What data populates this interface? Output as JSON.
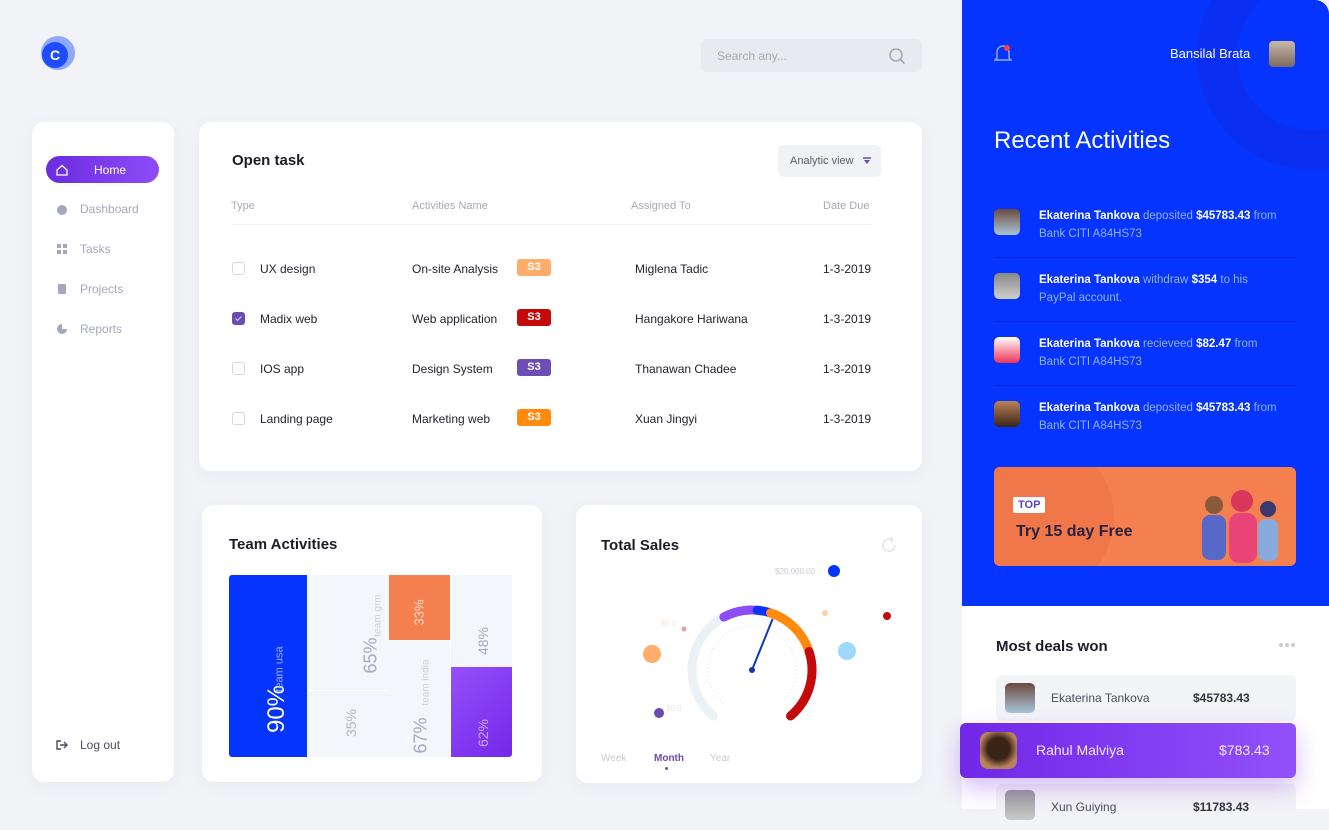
{
  "header": {
    "search_placeholder": "Search any...",
    "user_name": "Bansilal Brata",
    "logo_letter": "C"
  },
  "sidebar": {
    "items": [
      {
        "label": "Home",
        "icon": "home-icon",
        "active": true
      },
      {
        "label": "Dashboard",
        "icon": "dashboard-icon"
      },
      {
        "label": "Tasks",
        "icon": "tasks-icon"
      },
      {
        "label": "Projects",
        "icon": "projects-icon"
      },
      {
        "label": "Reports",
        "icon": "reports-icon"
      }
    ],
    "logout": "Log out"
  },
  "open_task": {
    "title": "Open task",
    "view_select": "Analytic view",
    "columns": [
      "Type",
      "Activities Name",
      "Assigned To",
      "Date Due"
    ],
    "rows": [
      {
        "type": "UX design",
        "activity": "On-site Analysis",
        "badge": "S3",
        "badge_color": "#ffad6b",
        "assigned": "Miglena Tadic",
        "due": "1-3-2019",
        "checked": false
      },
      {
        "type": "Madix web",
        "activity": "Web application",
        "badge": "S3",
        "badge_color": "#c40a0a",
        "assigned": "Hangakore Hariwana",
        "due": "1-3-2019",
        "checked": true
      },
      {
        "type": "IOS app",
        "activity": "Design System",
        "badge": "S3",
        "badge_color": "#6d4eb6",
        "assigned": "Thanawan Chadee",
        "due": "1-3-2019",
        "checked": false
      },
      {
        "type": "Landing page",
        "activity": "Marketing web",
        "badge": "S3",
        "badge_color": "#ff8a0d",
        "assigned": "Xuan Jingyi",
        "due": "1-3-2019",
        "checked": false
      }
    ]
  },
  "team_activities": {
    "title": "Team Activities",
    "tiles": [
      {
        "value": "90%",
        "label": "team usa"
      },
      {
        "value": "65%",
        "label": "team grm"
      },
      {
        "value": "35%"
      },
      {
        "value": "33%"
      },
      {
        "value": "67%",
        "label": "team india"
      },
      {
        "value": "48%"
      },
      {
        "value": "62%"
      }
    ]
  },
  "total_sales": {
    "title": "Total Sales",
    "labels": {
      "max": "$20,000.00",
      "mid": "$5.0",
      "min": "$0.0"
    },
    "tabs": [
      "Week",
      "Month",
      "Year"
    ],
    "active_tab": "Month"
  },
  "recent": {
    "title": "Recent Activities",
    "items": [
      {
        "name": "Ekaterina Tankova",
        "verb": "deposited",
        "amount": "$45783.43",
        "rest": "from Bank CITI A84HS73"
      },
      {
        "name": "Ekaterina Tankova",
        "verb": "withdraw",
        "amount": "$354",
        "rest": "to his PayPal account."
      },
      {
        "name": "Ekaterina Tankova",
        "verb": "recieveed",
        "amount": "$82.47",
        "rest": "from Bank CITI A84HS73"
      },
      {
        "name": "Ekaterina Tankova",
        "verb": "deposited",
        "amount": "$45783.43",
        "rest": "from Bank CITI A84HS73"
      }
    ],
    "promo": {
      "tag": "TOP",
      "text": "Try 15 day Free"
    }
  },
  "deals": {
    "title": "Most deals won",
    "rows": [
      {
        "name": "Ekaterina Tankova",
        "amount": "$45783.43"
      },
      {
        "name": "Rahul Malviya",
        "amount": "$783.43",
        "highlight": true
      },
      {
        "name": "Xun Guiying",
        "amount": "$11783.43"
      }
    ]
  },
  "colors": {
    "primary_blue": "#0534ff",
    "purple": "#7b35ef",
    "orange": "#f5804f"
  }
}
